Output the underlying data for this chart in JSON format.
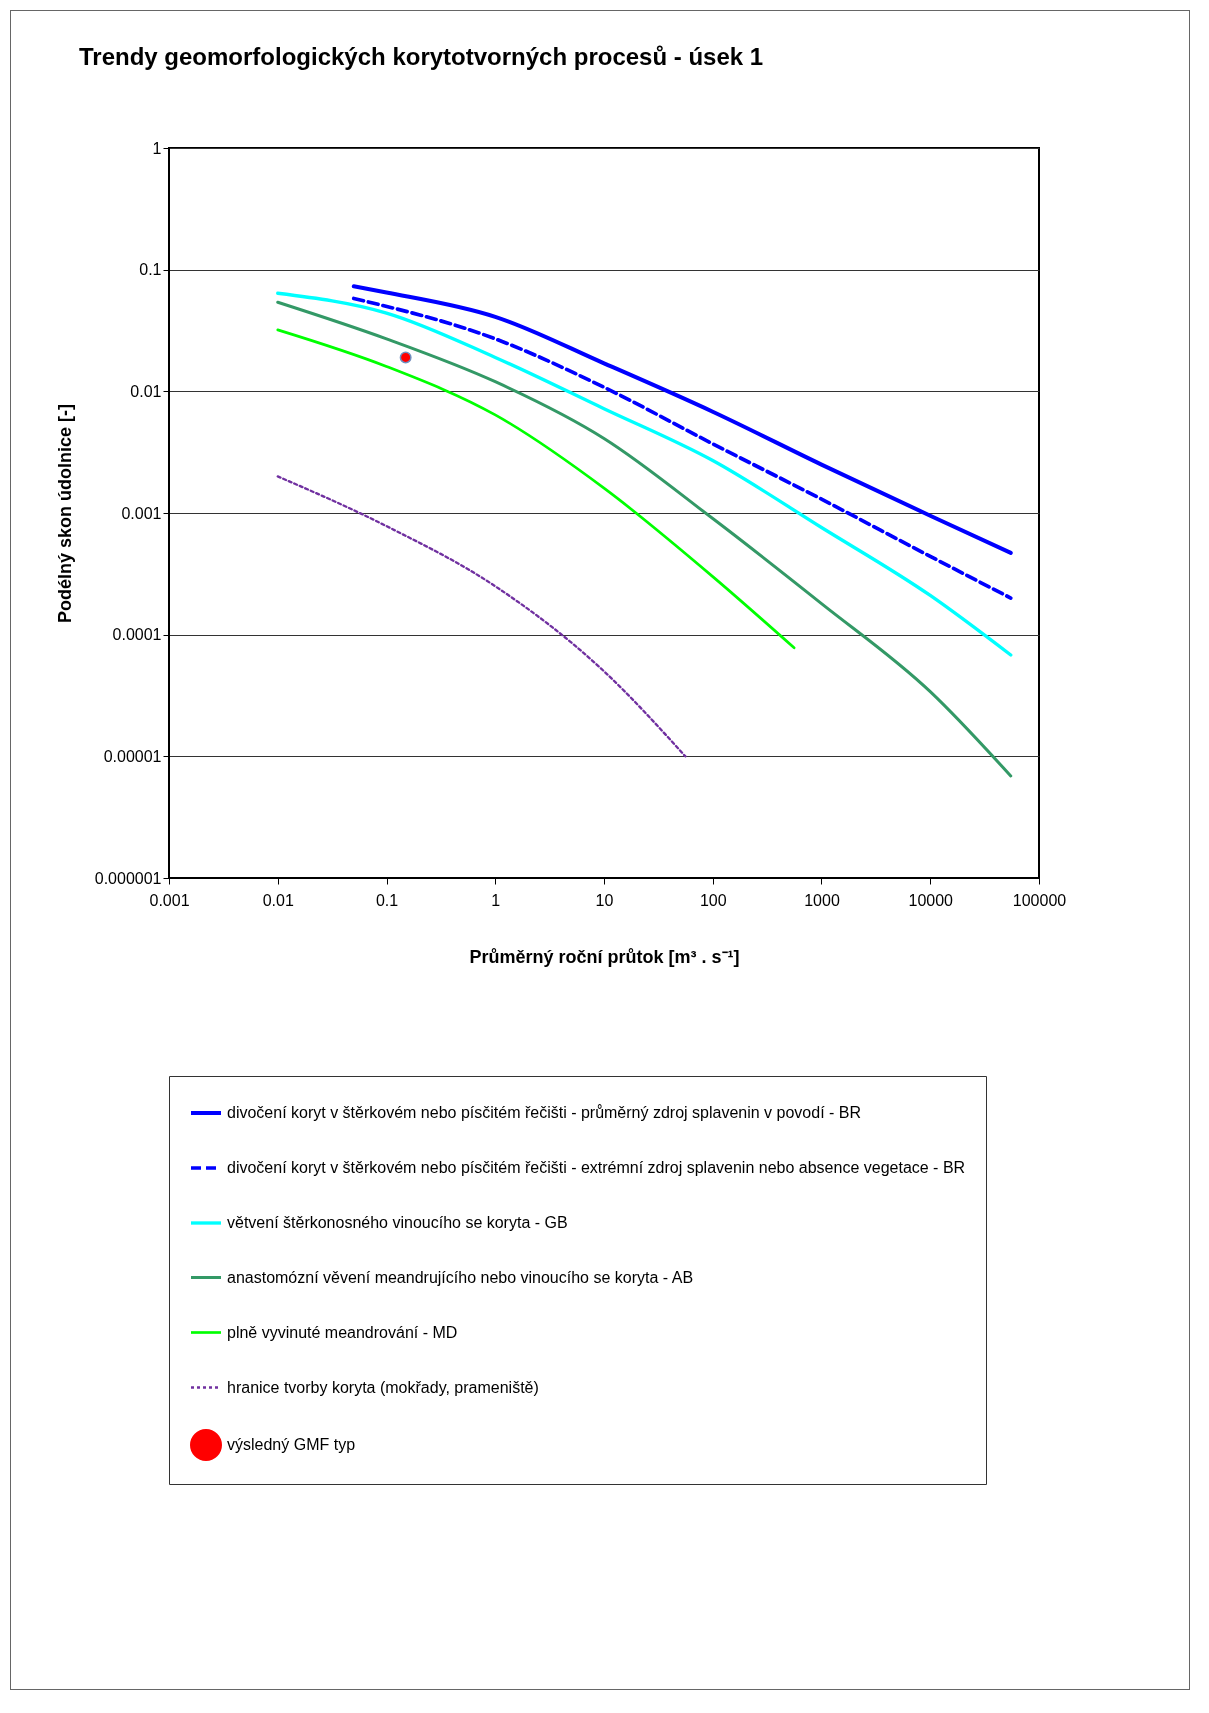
{
  "chart_data": {
    "type": "line",
    "title": "Trendy geomorfologických korytotvorných procesů - úsek 1",
    "xlabel": "Průměrný roční průtok [m³ . s⁻¹]",
    "ylabel": "Podélný skon údolnice [-]",
    "log": "xy",
    "xlim": [
      0.001,
      100000
    ],
    "xticks": [
      0.001,
      0.01,
      0.1,
      1,
      10,
      100,
      1000,
      10000,
      100000
    ],
    "ylim": [
      1e-06,
      1
    ],
    "yticks": [
      {
        "value": 1e-06,
        "label": "0.000001"
      },
      {
        "value": 1e-05,
        "label": "0.00001"
      },
      0.0001,
      0.001,
      0.01,
      0.1,
      1
    ],
    "grid": "y",
    "legend": "bottom",
    "series": [
      {
        "name": "divočení koryt v štěrkovém nebo písčitém řečišti - průměrný zdroj splavenin v povodí - BR",
        "color": "#0000ff",
        "line_style": "solid",
        "x": [
          0.05,
          0.1,
          1,
          10,
          100,
          1000,
          10000,
          55000
        ],
        "values": [
          0.073,
          0.065,
          0.041,
          0.017,
          0.0068,
          0.0025,
          0.00095,
          0.00047
        ]
      },
      {
        "name": "divočení koryt v štěrkovém nebo písčitém řečišti - extrémní zdroj splavenin nebo absence vegetace - BR",
        "color": "#0000ff",
        "line_style": "dashed",
        "x": [
          0.05,
          1,
          10,
          100,
          1000,
          10000,
          55000
        ],
        "values": [
          0.058,
          0.027,
          0.0108,
          0.0037,
          0.0013,
          0.00044,
          0.0002
        ]
      },
      {
        "name": "větvení štěrkonosného vinoucího se koryta - GB",
        "color": "#00ffff",
        "line_style": "solid",
        "x": [
          0.01,
          0.1,
          1,
          10,
          100,
          1000,
          10000,
          55000
        ],
        "values": [
          0.064,
          0.044,
          0.019,
          0.0072,
          0.0027,
          0.00076,
          0.00021,
          6.8e-05
        ]
      },
      {
        "name": "anastomózní věvení meandrujícího nebo vinoucího se koryta - AB",
        "color": "#339966",
        "line_style": "solid",
        "x": [
          0.01,
          0.1,
          1,
          10,
          100,
          1000,
          10000,
          55000
        ],
        "values": [
          0.054,
          0.027,
          0.012,
          0.0041,
          0.0009,
          0.00018,
          3.4e-05,
          6.9e-06
        ]
      },
      {
        "name": "plně vyvinuté meandrování - MD",
        "color": "#00ff00",
        "line_style": "solid",
        "x": [
          0.01,
          0.1,
          1,
          10,
          100,
          560
        ],
        "values": [
          0.032,
          0.016,
          0.0064,
          0.0016,
          0.0003,
          7.8e-05
        ]
      },
      {
        "name": "hranice tvorby koryta (mokřady, prameniště)",
        "color": "#7030a0",
        "line_style": "dotted",
        "x": [
          0.01,
          0.1,
          1,
          10,
          56
        ],
        "values": [
          0.002,
          0.00078,
          0.00025,
          5e-05,
          1e-05
        ]
      },
      {
        "name": "výsledný GMF typ",
        "color": "#ff0000",
        "type": "scatter",
        "marker": "circle",
        "x": [
          0.15
        ],
        "values": [
          0.019
        ]
      }
    ]
  }
}
